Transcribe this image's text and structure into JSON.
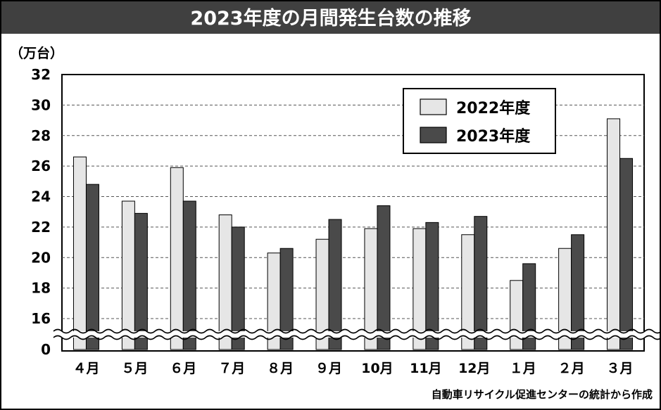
{
  "title": "2023年度の月間発生台数の推移",
  "source": "自動車リサイクル促進センターの統計から作成",
  "colors": {
    "title_bg": "#404040",
    "series_2022": "#e6e6e6",
    "series_2023": "#4a4a4a",
    "grid": "#555555"
  },
  "chart_data": {
    "type": "bar",
    "ylabel": "（万台）",
    "y_ticks": [
      "32",
      "30",
      "28",
      "26",
      "24",
      "22",
      "20",
      "18",
      "16",
      "0"
    ],
    "axis_break": "between 0 and 16",
    "ylim": [
      16,
      32
    ],
    "grid": true,
    "legend_position": "top-right",
    "categories": [
      "４月",
      "５月",
      "６月",
      "７月",
      "８月",
      "９月",
      "10月",
      "11月",
      "12月",
      "１月",
      "２月",
      "３月"
    ],
    "series": [
      {
        "name": "2022年度",
        "values": [
          26.6,
          23.7,
          25.9,
          22.8,
          20.3,
          21.2,
          21.9,
          21.9,
          21.5,
          18.5,
          20.6,
          29.1
        ]
      },
      {
        "name": "2023年度",
        "values": [
          24.8,
          22.9,
          23.7,
          22.0,
          20.6,
          22.5,
          23.4,
          22.3,
          22.7,
          19.6,
          21.5,
          26.5
        ]
      }
    ]
  }
}
